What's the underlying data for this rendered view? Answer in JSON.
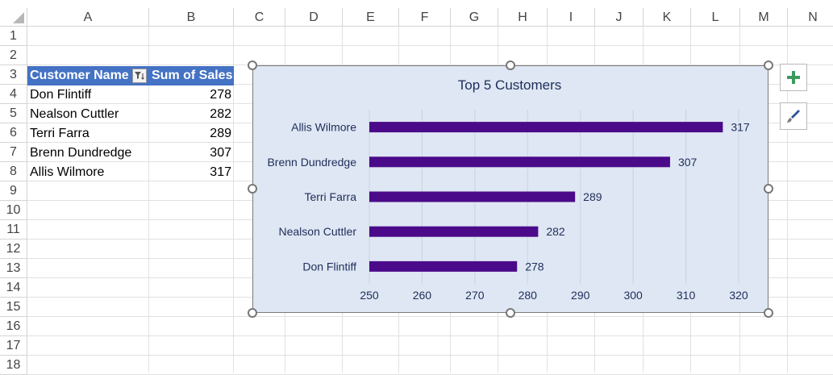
{
  "columns": [
    "A",
    "B",
    "C",
    "D",
    "E",
    "F",
    "G",
    "H",
    "I",
    "J",
    "K",
    "L",
    "M",
    "N"
  ],
  "rows": [
    "1",
    "2",
    "3",
    "4",
    "5",
    "6",
    "7",
    "8",
    "9",
    "10",
    "11",
    "12",
    "13",
    "14",
    "15",
    "16",
    "17",
    "18"
  ],
  "pivot": {
    "header_col1": "Customer Name",
    "header_col2": "Sum of Sales",
    "rows": [
      {
        "name": "Don Flintiff",
        "value": "278"
      },
      {
        "name": "Nealson Cuttler",
        "value": "282"
      },
      {
        "name": "Terri Farra",
        "value": "289"
      },
      {
        "name": "Brenn Dundredge",
        "value": "307"
      },
      {
        "name": "Allis Wilmore",
        "value": "317"
      }
    ]
  },
  "chart_data": {
    "type": "bar",
    "orientation": "horizontal",
    "title": "Top 5 Customers",
    "categories": [
      "Allis Wilmore",
      "Brenn Dundredge",
      "Terri Farra",
      "Nealson Cuttler",
      "Don Flintiff"
    ],
    "values": [
      317,
      307,
      289,
      282,
      278
    ],
    "xlim": [
      250,
      320
    ],
    "xticks": [
      250,
      260,
      270,
      280,
      290,
      300,
      310,
      320
    ],
    "grid": true,
    "data_labels": true,
    "bar_color": "#4b0a8a",
    "background_color": "#dee7f3"
  },
  "chart_tools": {
    "elements_icon": "plus-icon",
    "styles_icon": "paintbrush-icon"
  },
  "colors": {
    "pivot_header": "#4472c4",
    "plus_green": "#3c9a5f"
  }
}
